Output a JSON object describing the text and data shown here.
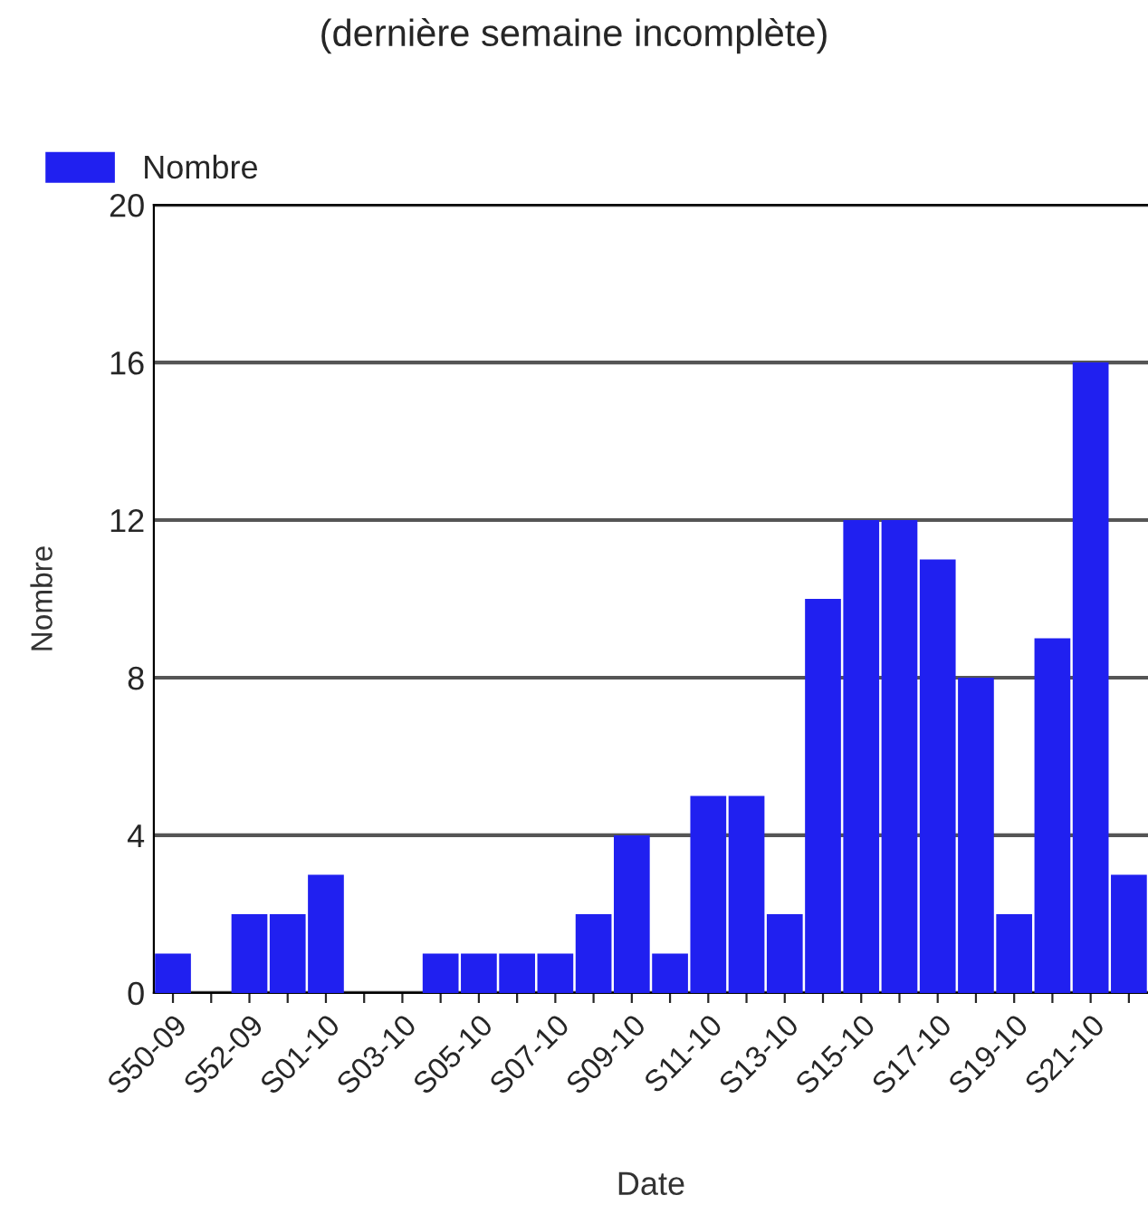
{
  "chart_data": {
    "type": "bar",
    "title": "(dernière semaine incomplète)",
    "xlabel": "Date",
    "ylabel": "Nombre",
    "categories": [
      "S50-09",
      null,
      "S52-09",
      null,
      "S01-10",
      null,
      "S03-10",
      null,
      "S05-10",
      null,
      "S07-10",
      null,
      "S09-10",
      null,
      "S11-10",
      null,
      "S13-10",
      null,
      "S15-10",
      null,
      "S17-10",
      null,
      "S19-10",
      null,
      "S21-10",
      null
    ],
    "series": [
      {
        "name": "Nombre",
        "color": "#2020f0",
        "values": [
          1,
          0,
          2,
          2,
          3,
          0,
          0,
          1,
          1,
          1,
          1,
          2,
          4,
          1,
          5,
          5,
          2,
          10,
          12,
          12,
          11,
          8,
          2,
          9,
          16,
          3
        ]
      }
    ],
    "ylim": [
      0,
      20
    ],
    "yticks": [
      0,
      4,
      8,
      12,
      16,
      20
    ],
    "grid": "y",
    "legend": "top left"
  }
}
